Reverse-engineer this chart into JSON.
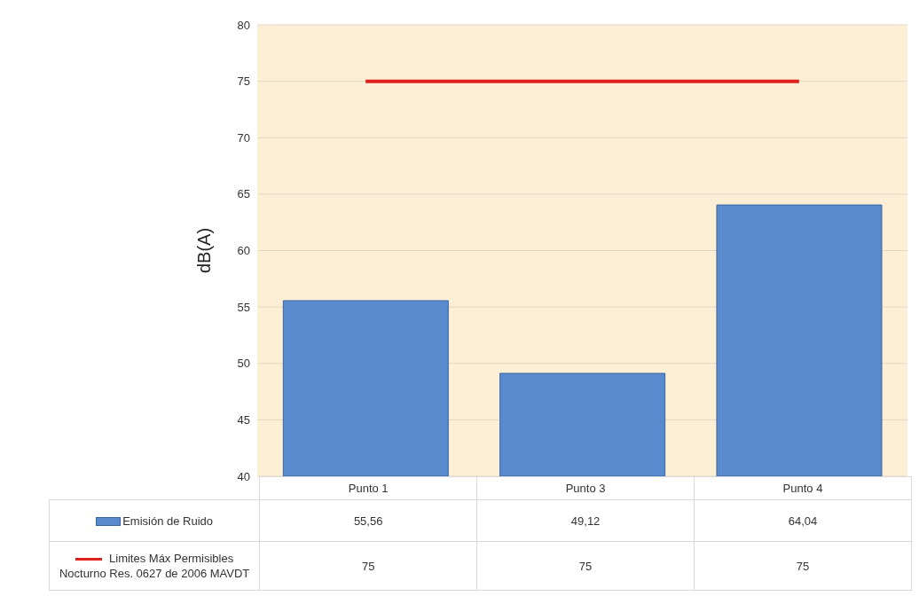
{
  "chart_data": {
    "type": "bar",
    "ylabel": "dB(A)",
    "categories": [
      "Punto 1",
      "Punto 3",
      "Punto 4"
    ],
    "series": [
      {
        "name": "Emisión de Ruido",
        "color": "#5a8ace",
        "values": [
          55.56,
          49.12,
          64.04
        ],
        "value_labels": [
          "55,56",
          "49,12",
          "64,04"
        ]
      },
      {
        "name": "Limites Máx Permisibles Nocturno Res. 0627 de 2006 MAVDT",
        "type": "line",
        "color": "#e0201c",
        "values": [
          75,
          75,
          75
        ],
        "value_labels": [
          "75",
          "75",
          "75"
        ],
        "marker": "none"
      }
    ],
    "ylim": [
      40,
      80
    ],
    "yticks": [
      40,
      45,
      50,
      55,
      60,
      65,
      70,
      75,
      80
    ],
    "grid": "y",
    "legend": "bottom"
  }
}
